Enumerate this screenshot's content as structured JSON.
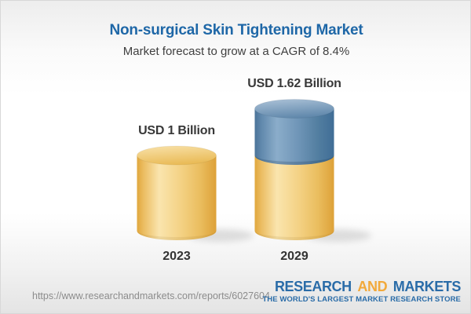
{
  "header": {
    "title": "Non-surgical Skin Tightening Market",
    "subtitle": "Market forecast to grow at a CAGR of 8.4%"
  },
  "chart_data": {
    "type": "bar",
    "subtype": "3d-cylinder",
    "title": "Non-surgical Skin Tightening Market",
    "subtitle": "Market forecast to grow at a CAGR of 8.4%",
    "unit": "USD Billion",
    "cagr_pct": 8.4,
    "categories": [
      "2023",
      "2029"
    ],
    "values": [
      1.0,
      1.62
    ],
    "value_labels": [
      "USD 1 Billion",
      "USD 1.62 Billion"
    ],
    "segments": [
      [
        {
          "value": 1.0,
          "color": "base"
        }
      ],
      [
        {
          "value": 1.0,
          "color": "base"
        },
        {
          "value": 0.62,
          "color": "growth"
        }
      ]
    ],
    "colors": {
      "base": "#F3CE7C",
      "growth": "#6189AD"
    },
    "legend": "none",
    "grid": "off"
  },
  "footer": {
    "url": "https://www.researchandmarkets.com/reports/6027604",
    "logo": {
      "research": "RESEARCH",
      "and": "AND",
      "markets": "MARKETS",
      "tagline": "THE WORLD'S LARGEST MARKET RESEARCH STORE"
    }
  }
}
